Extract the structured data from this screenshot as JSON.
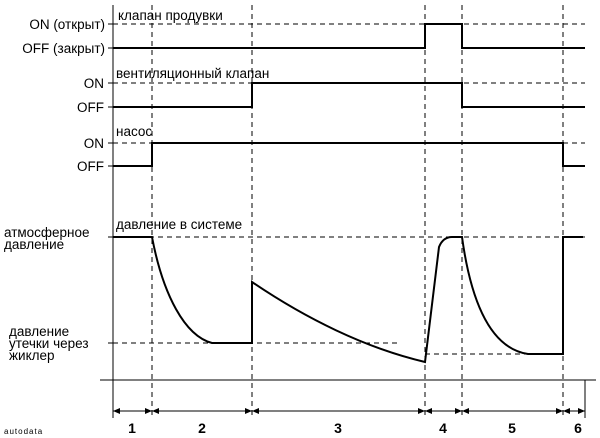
{
  "signals": [
    {
      "title": "клапан продувки",
      "high_label": "ON (открыт)",
      "low_label": "OFF (закрыт)"
    },
    {
      "title": "вентиляционный клапан",
      "high_label": "ON",
      "low_label": "OFF"
    },
    {
      "title": "насос",
      "high_label": "ON",
      "low_label": "OFF"
    }
  ],
  "pressure": {
    "title": "давление в системе",
    "level_high_label_1": "атмосферное",
    "level_high_label_2": "давление",
    "level_low_label_1": "давление",
    "level_low_label_2": "утечки через",
    "level_low_label_3": "жиклер"
  },
  "phases": [
    "1",
    "2",
    "3",
    "4",
    "5",
    "6"
  ],
  "watermark": "autodata",
  "colors": {
    "line": "#000000",
    "dashed": "#000000",
    "background": "#ffffff"
  }
}
